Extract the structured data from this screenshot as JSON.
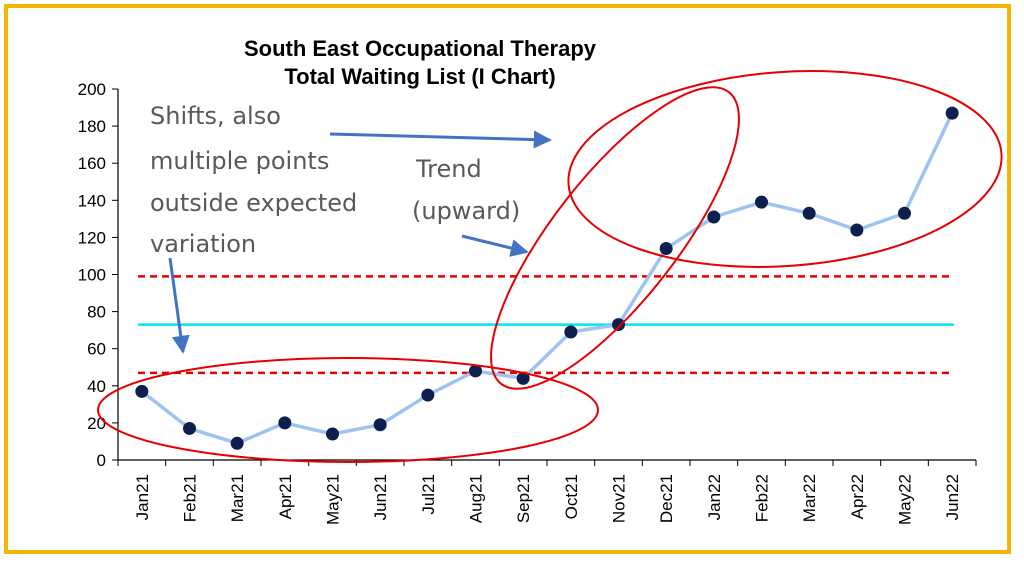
{
  "chart_data": {
    "type": "line",
    "title_lines": [
      "South East Occupational Therapy",
      "Total Waiting List  (I Chart)"
    ],
    "categories": [
      "Jan21",
      "Feb21",
      "Mar21",
      "Apr21",
      "May21",
      "Jun21",
      "Jul21",
      "Aug21",
      "Sep21",
      "Oct21",
      "Nov21",
      "Dec21",
      "Jan22",
      "Feb22",
      "Mar22",
      "Apr22",
      "May22",
      "Jun22"
    ],
    "values": [
      37,
      17,
      9,
      20,
      14,
      19,
      35,
      48,
      44,
      69,
      73,
      114,
      131,
      139,
      133,
      124,
      133,
      187
    ],
    "ylim": [
      0,
      200
    ],
    "yticks": [
      "0",
      "20",
      "40",
      "60",
      "80",
      "100",
      "120",
      "140",
      "160",
      "180",
      "200"
    ],
    "mean": 73,
    "upper_limit": 99,
    "lower_limit": 47,
    "annotations": {
      "shifts": [
        "Shifts, also",
        "multiple points",
        "outside expected",
        "variation"
      ],
      "trend": [
        "Trend",
        "(upward)"
      ]
    },
    "colors": {
      "line": "#9dc3f0",
      "marker": "#0d1f4d",
      "mean": "#00e5f2",
      "limits": "#e60000",
      "ellipse": "#e60000",
      "arrow": "#4472c4",
      "border": "#f2b705"
    },
    "grid": false,
    "legend": "none"
  }
}
